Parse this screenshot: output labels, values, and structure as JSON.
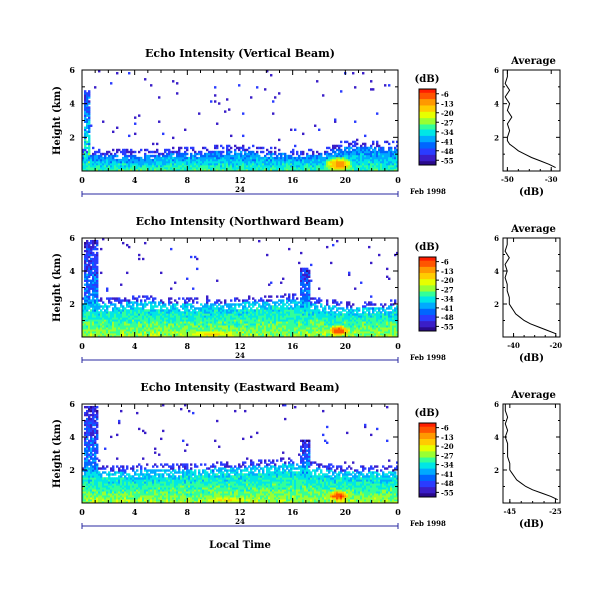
{
  "colorbar": {
    "unit": "(dB)",
    "ticks": [
      "-6",
      "-13",
      "-20",
      "-27",
      "-34",
      "-41",
      "-48",
      "-55"
    ],
    "colors": [
      "#ff1e00",
      "#ff5500",
      "#ff9900",
      "#ffcc00",
      "#e6ff00",
      "#99ff33",
      "#33ff99",
      "#00e6e6",
      "#00aaff",
      "#0066ff",
      "#2a3cff",
      "#3a1ec8",
      "#2a0a8c"
    ]
  },
  "common": {
    "ylabel": "Height (km)",
    "date_label": "Feb 1998",
    "day_label": "24",
    "xlabel": "Local Time",
    "avg_title": "Average",
    "avg_xlabel": "(dB)"
  },
  "chart_data": [
    {
      "type": "heatmap",
      "title": "Echo Intensity (Vertical Beam)",
      "ylabel": "Height (km)",
      "x_ticks": [
        "0",
        "4",
        "8",
        "12",
        "16",
        "20",
        "0"
      ],
      "y_ticks": [
        "2",
        "4",
        "6"
      ],
      "xlim": [
        0,
        24
      ],
      "ylim": [
        0,
        6
      ],
      "clim": [
        -55,
        -6
      ],
      "features": [
        {
          "kind": "boundary_layer",
          "top_km": [
            [
              0,
              1.0
            ],
            [
              2,
              1.0
            ],
            [
              4,
              0.9
            ],
            [
              8,
              1.1
            ],
            [
              12,
              1.2
            ],
            [
              16,
              1.0
            ],
            [
              18,
              1.0
            ],
            [
              20,
              1.5
            ],
            [
              22,
              1.5
            ],
            [
              24,
              1.4
            ]
          ],
          "strength": 0.25
        },
        {
          "kind": "hot_spot",
          "x": 19.5,
          "y": 0.4,
          "rx": 1.2,
          "ry": 0.5,
          "strength": 0.85
        },
        {
          "kind": "column",
          "x0": 0.1,
          "x1": 0.6,
          "y0": 0.2,
          "y1": 4.8,
          "strength": 0.6
        }
      ],
      "average": {
        "title": "Average",
        "xlabel": "(dB)",
        "x_ticks": [
          "-50",
          "-30"
        ],
        "xlim": [
          -52,
          -26
        ],
        "y_ticks": [
          "2",
          "4",
          "6"
        ],
        "ylim": [
          0,
          6
        ],
        "height_km": [
          0.2,
          0.4,
          0.6,
          0.8,
          1.0,
          1.2,
          1.4,
          1.6,
          1.8,
          2.0,
          2.4,
          2.8,
          3.2,
          3.6,
          4.0,
          4.4,
          4.8,
          5.2,
          5.6,
          6.0
        ],
        "dB": [
          -28,
          -31,
          -35,
          -39,
          -42,
          -45,
          -47,
          -49,
          -50,
          -50,
          -49,
          -50,
          -48,
          -50,
          -49,
          -51,
          -49,
          -51,
          -50,
          -50
        ]
      }
    },
    {
      "type": "heatmap",
      "title": "Echo Intensity (Northward Beam)",
      "ylabel": "Height (km)",
      "x_ticks": [
        "0",
        "4",
        "8",
        "12",
        "16",
        "20",
        "0"
      ],
      "y_ticks": [
        "2",
        "4",
        "6"
      ],
      "xlim": [
        0,
        24
      ],
      "ylim": [
        0,
        6
      ],
      "clim": [
        -55,
        -6
      ],
      "features": [
        {
          "kind": "boundary_layer",
          "top_km": [
            [
              0,
              2.0
            ],
            [
              2,
              2.0
            ],
            [
              4,
              2.2
            ],
            [
              8,
              2.0
            ],
            [
              12,
              2.1
            ],
            [
              16,
              2.3
            ],
            [
              18,
              2.0
            ],
            [
              20,
              1.8
            ],
            [
              22,
              1.8
            ],
            [
              24,
              1.9
            ]
          ],
          "strength": 0.35
        },
        {
          "kind": "hot_spot",
          "x": 10.0,
          "y": 0.2,
          "rx": 3.0,
          "ry": 0.25,
          "strength": 0.75
        },
        {
          "kind": "hot_spot",
          "x": 19.5,
          "y": 0.4,
          "rx": 1.0,
          "ry": 0.4,
          "strength": 0.95
        },
        {
          "kind": "column",
          "x0": 0.1,
          "x1": 1.2,
          "y0": 0.2,
          "y1": 5.9,
          "strength": 0.5
        },
        {
          "kind": "column",
          "x0": 16.6,
          "x1": 17.3,
          "y0": 1.0,
          "y1": 4.2,
          "strength": 0.5
        }
      ],
      "average": {
        "title": "Average",
        "xlabel": "(dB)",
        "x_ticks": [
          "-40",
          "-20"
        ],
        "xlim": [
          -45,
          -18
        ],
        "y_ticks": [
          "2",
          "4",
          "6"
        ],
        "ylim": [
          0,
          6
        ],
        "height_km": [
          0.2,
          0.4,
          0.6,
          0.8,
          1.0,
          1.2,
          1.4,
          1.6,
          1.8,
          2.0,
          2.4,
          2.8,
          3.2,
          3.6,
          4.0,
          4.4,
          4.8,
          5.2,
          5.6,
          6.0
        ],
        "dB": [
          -20,
          -24,
          -28,
          -32,
          -35,
          -37,
          -39,
          -40,
          -41,
          -42,
          -42,
          -43,
          -43,
          -44,
          -43,
          -44,
          -42,
          -44,
          -43,
          -43
        ]
      }
    },
    {
      "type": "heatmap",
      "title": "Echo Intensity (Eastward Beam)",
      "ylabel": "Height (km)",
      "x_ticks": [
        "0",
        "4",
        "8",
        "12",
        "16",
        "20",
        "0"
      ],
      "y_ticks": [
        "2",
        "4",
        "6"
      ],
      "xlim": [
        0,
        24
      ],
      "ylim": [
        0,
        6
      ],
      "clim": [
        -55,
        -6
      ],
      "features": [
        {
          "kind": "boundary_layer",
          "top_km": [
            [
              0,
              2.0
            ],
            [
              2,
              1.9
            ],
            [
              4,
              2.0
            ],
            [
              8,
              2.0
            ],
            [
              12,
              2.2
            ],
            [
              16,
              2.4
            ],
            [
              18,
              2.1
            ],
            [
              20,
              1.9
            ],
            [
              22,
              1.9
            ],
            [
              24,
              1.9
            ]
          ],
          "strength": 0.35
        },
        {
          "kind": "hot_spot",
          "x": 11.0,
          "y": 0.2,
          "rx": 3.0,
          "ry": 0.25,
          "strength": 0.7
        },
        {
          "kind": "hot_spot",
          "x": 19.5,
          "y": 0.45,
          "rx": 1.0,
          "ry": 0.4,
          "strength": 0.95
        },
        {
          "kind": "column",
          "x0": 0.1,
          "x1": 1.2,
          "y0": 0.2,
          "y1": 5.9,
          "strength": 0.5
        },
        {
          "kind": "column",
          "x0": 16.6,
          "x1": 17.3,
          "y0": 1.0,
          "y1": 3.8,
          "strength": 0.5
        }
      ],
      "average": {
        "title": "Average",
        "xlabel": "(dB)",
        "x_ticks": [
          "-45",
          "-25"
        ],
        "xlim": [
          -48,
          -23
        ],
        "y_ticks": [
          "2",
          "4",
          "6"
        ],
        "ylim": [
          0,
          6
        ],
        "height_km": [
          0.2,
          0.4,
          0.6,
          0.8,
          1.0,
          1.2,
          1.4,
          1.6,
          1.8,
          2.0,
          2.4,
          2.8,
          3.2,
          3.6,
          4.0,
          4.4,
          4.8,
          5.2,
          5.6,
          6.0
        ],
        "dB": [
          -24,
          -27,
          -31,
          -35,
          -38,
          -40,
          -42,
          -43,
          -44,
          -45,
          -45,
          -46,
          -46,
          -46,
          -47,
          -46,
          -47,
          -46,
          -47,
          -47
        ]
      }
    }
  ]
}
